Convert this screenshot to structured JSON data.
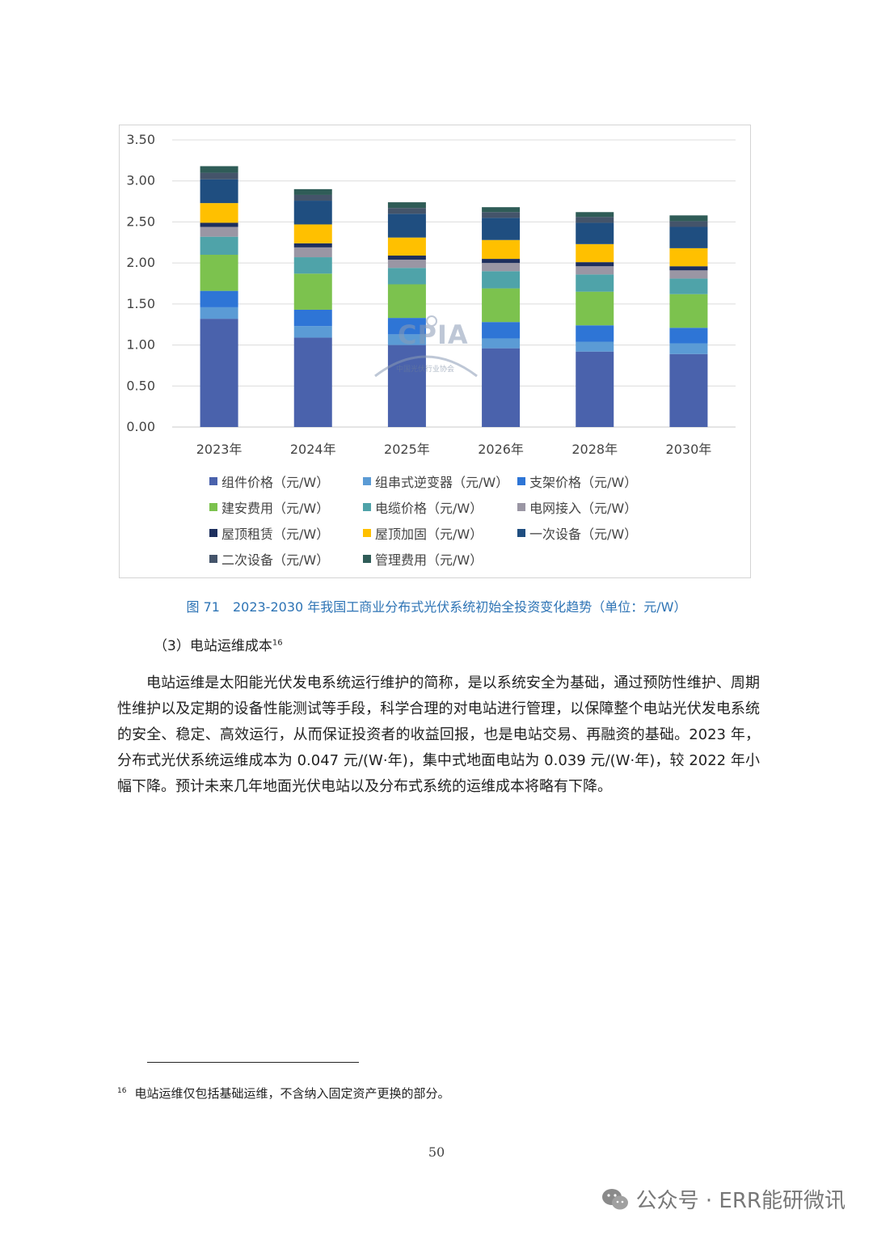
{
  "chart_data": {
    "type": "bar",
    "stacked": true,
    "categories": [
      "2023年",
      "2024年",
      "2025年",
      "2026年",
      "2028年",
      "2030年"
    ],
    "y_ticks": [
      "0.00",
      "0.50",
      "1.00",
      "1.50",
      "2.00",
      "2.50",
      "3.00",
      "3.50"
    ],
    "ylim": [
      0,
      3.5
    ],
    "legend_position": "bottom",
    "series": [
      {
        "name": "组件价格（元/W）",
        "color": "#4a62ac",
        "values": [
          1.32,
          1.09,
          1.0,
          0.96,
          0.92,
          0.89
        ]
      },
      {
        "name": "组串式逆变器（元/W）",
        "color": "#5b9bd5",
        "values": [
          0.14,
          0.14,
          0.13,
          0.12,
          0.12,
          0.13
        ]
      },
      {
        "name": "支架价格（元/W）",
        "color": "#2e75d6",
        "values": [
          0.2,
          0.2,
          0.2,
          0.2,
          0.2,
          0.19
        ]
      },
      {
        "name": "建安费用（元/W）",
        "color": "#7cc24e",
        "values": [
          0.44,
          0.44,
          0.41,
          0.41,
          0.41,
          0.41
        ]
      },
      {
        "name": "电缆价格（元/W）",
        "color": "#4fa3a9",
        "values": [
          0.22,
          0.2,
          0.2,
          0.21,
          0.21,
          0.19
        ]
      },
      {
        "name": "电网接入（元/W）",
        "color": "#9a96a4",
        "values": [
          0.12,
          0.12,
          0.1,
          0.1,
          0.1,
          0.1
        ]
      },
      {
        "name": "屋顶租赁（元/W）",
        "color": "#1d2f5e",
        "values": [
          0.05,
          0.05,
          0.05,
          0.05,
          0.05,
          0.05
        ]
      },
      {
        "name": "屋顶加固（元/W）",
        "color": "#ffc000",
        "values": [
          0.24,
          0.23,
          0.22,
          0.23,
          0.22,
          0.22
        ]
      },
      {
        "name": "一次设备（元/W）",
        "color": "#1f4e80",
        "values": [
          0.29,
          0.29,
          0.29,
          0.27,
          0.26,
          0.26
        ]
      },
      {
        "name": "二次设备（元/W）",
        "color": "#44546a",
        "values": [
          0.08,
          0.07,
          0.07,
          0.07,
          0.07,
          0.07
        ]
      },
      {
        "name": "管理费用（元/W）",
        "color": "#2f5c57",
        "values": [
          0.08,
          0.07,
          0.07,
          0.06,
          0.06,
          0.07
        ]
      }
    ]
  },
  "chart_watermark": {
    "logo": "CPIA",
    "text": "中国光伏行业协会"
  },
  "caption": "图 71　2023-2030 年我国工商业分布式光伏系统初始全投资变化趋势（单位：元/W）",
  "section": {
    "heading": "（3）电站运维成本",
    "footnote_ref": "16"
  },
  "body_paragraph": "电站运维是太阳能光伏发电系统运行维护的简称，是以系统安全为基础，通过预防性维护、周期性维护以及定期的设备性能测试等手段，科学合理的对电站进行管理，以保障整个电站光伏发电系统的安全、稳定、高效运行，从而保证投资者的收益回报，也是电站交易、再融资的基础。2023 年，分布式光伏系统运维成本为 0.047 元/(W·年)，集中式地面电站为 0.039 元/(W·年)，较 2022 年小幅下降。预计未来几年地面光伏电站以及分布式系统的运维成本将略有下降。",
  "footnote": {
    "number": "16",
    "text": "电站运维仅包括基础运维，不含纳入固定资产更换的部分。"
  },
  "page_number": "50",
  "watermark": "公众号 · ERR能研微讯"
}
